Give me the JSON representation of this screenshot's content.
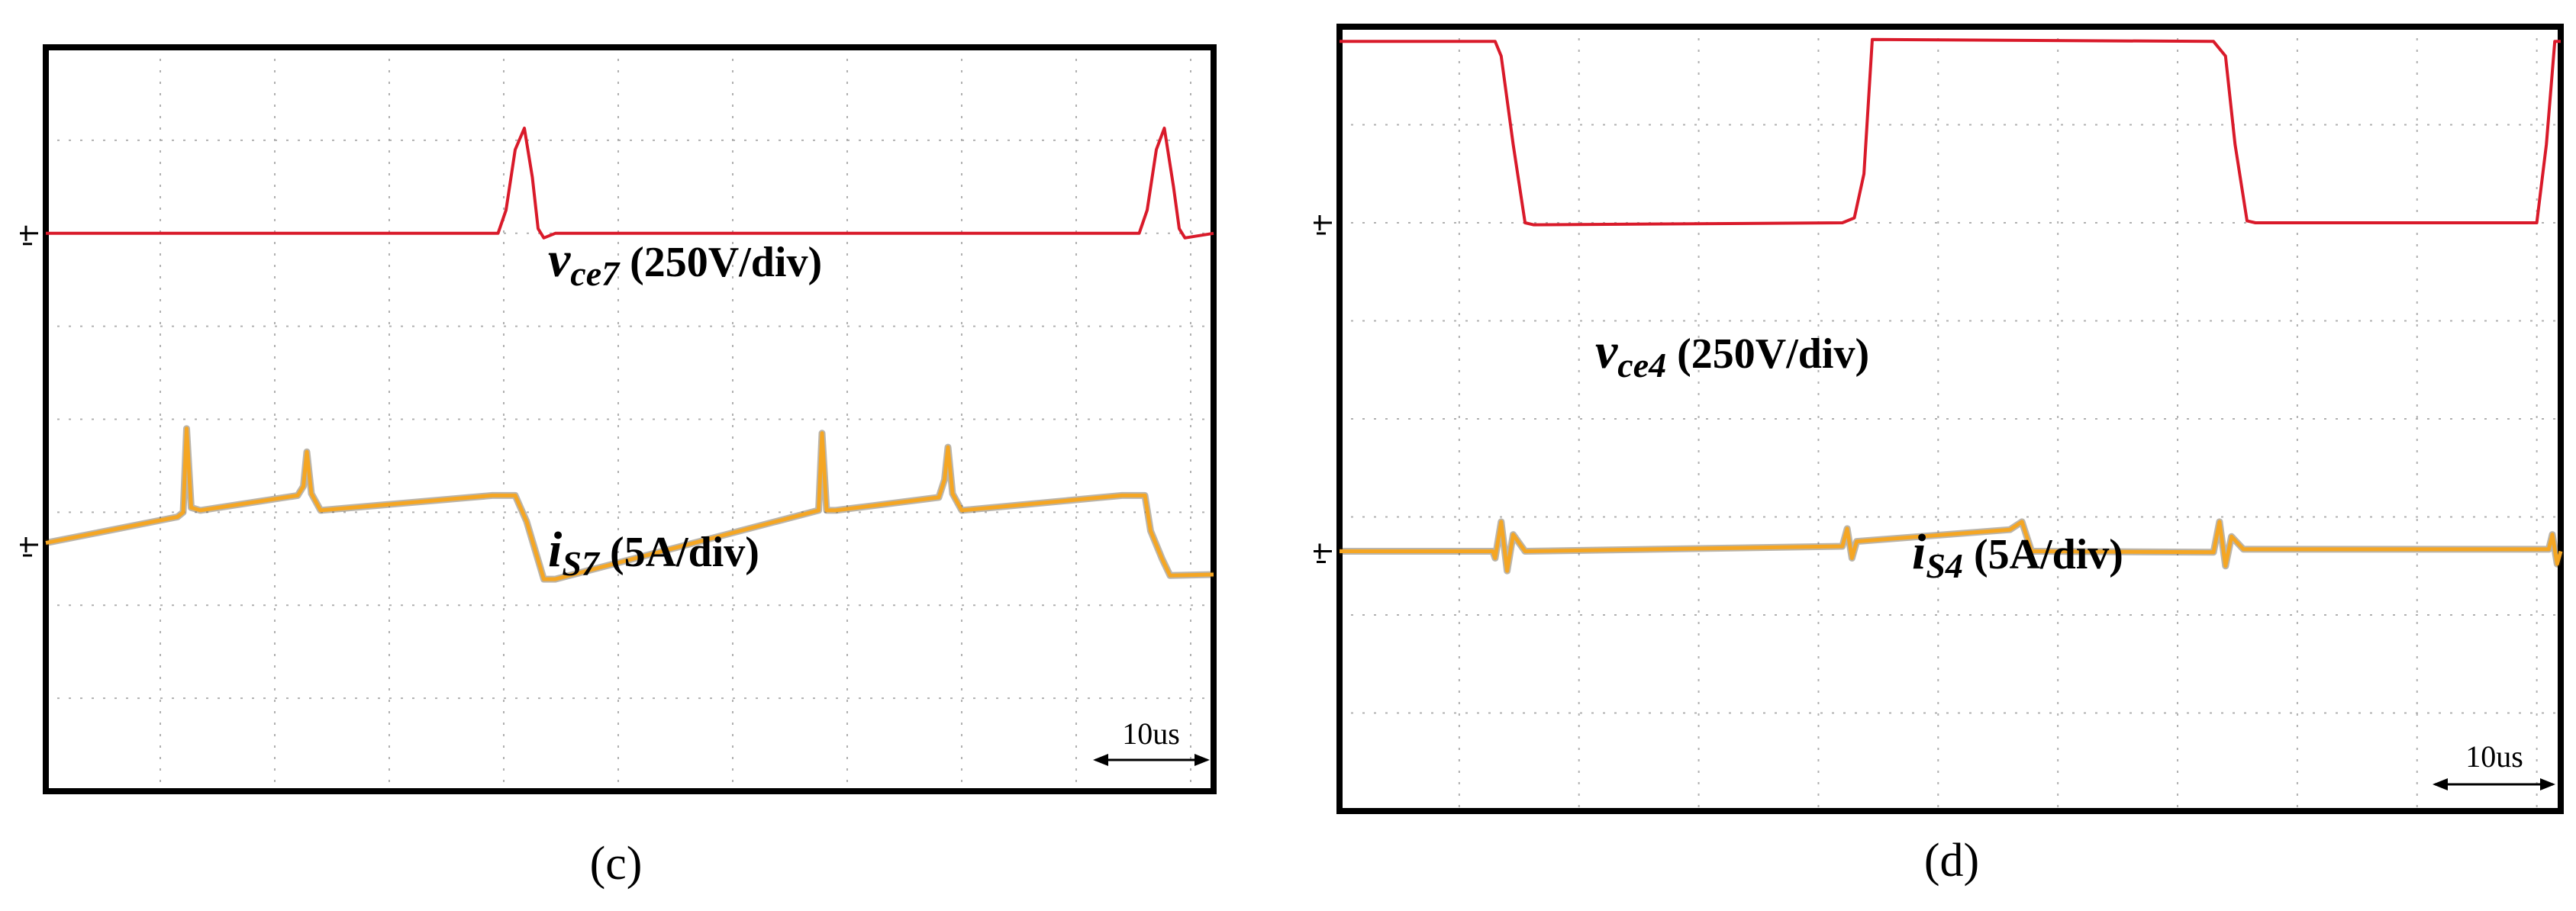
{
  "colors": {
    "voltage": "#d91a2a",
    "current": "#f5a623",
    "current_dark": "#3a2a10",
    "frame": "#000000",
    "grid": "#b0b0b0"
  },
  "chart_data": [
    {
      "type": "line",
      "caption": "(c)",
      "time_unit_per_div": "10us",
      "x": {
        "unit": "div",
        "range": [
          0,
          10.2
        ],
        "grid_divisions": 10
      },
      "y": {
        "unit": "div",
        "range": [
          -4,
          4
        ],
        "grid_divisions": 8
      },
      "scale_bar": {
        "label": "10us",
        "length_div": 1
      },
      "series": [
        {
          "name": "vce7",
          "label_main": "v",
          "label_sub": "ce7",
          "label_scale": "(250V/div)",
          "unit_per_div": "250V/div",
          "ground_level_div": 2.0,
          "points": [
            [
              0,
              2.0
            ],
            [
              3.95,
              2.0
            ],
            [
              4.02,
              2.25
            ],
            [
              4.1,
              2.9
            ],
            [
              4.18,
              3.13
            ],
            [
              4.25,
              2.6
            ],
            [
              4.3,
              2.05
            ],
            [
              4.35,
              1.95
            ],
            [
              4.45,
              2.0
            ],
            [
              9.55,
              2.0
            ],
            [
              9.62,
              2.25
            ],
            [
              9.7,
              2.9
            ],
            [
              9.77,
              3.13
            ],
            [
              9.85,
              2.5
            ],
            [
              9.9,
              2.05
            ],
            [
              9.95,
              1.95
            ],
            [
              10.2,
              2.0
            ]
          ]
        },
        {
          "name": "iS7",
          "label_main": "i",
          "label_sub": "S7",
          "label_scale": "(5A/div)",
          "unit_per_div": "5A/div",
          "ground_level_div": -1.35,
          "points": [
            [
              0,
              -1.33
            ],
            [
              1.15,
              -1.05
            ],
            [
              1.2,
              -1.0
            ],
            [
              1.23,
              -0.1
            ],
            [
              1.27,
              -0.95
            ],
            [
              1.35,
              -0.98
            ],
            [
              2.2,
              -0.82
            ],
            [
              2.25,
              -0.72
            ],
            [
              2.28,
              -0.35
            ],
            [
              2.32,
              -0.8
            ],
            [
              2.4,
              -0.98
            ],
            [
              3.9,
              -0.82
            ],
            [
              4.1,
              -0.82
            ],
            [
              4.2,
              -1.1
            ],
            [
              4.35,
              -1.72
            ],
            [
              4.45,
              -1.72
            ],
            [
              6.75,
              -0.98
            ],
            [
              6.78,
              -0.15
            ],
            [
              6.82,
              -0.98
            ],
            [
              6.9,
              -0.98
            ],
            [
              7.8,
              -0.84
            ],
            [
              7.85,
              -0.65
            ],
            [
              7.88,
              -0.3
            ],
            [
              7.92,
              -0.8
            ],
            [
              8.0,
              -0.98
            ],
            [
              9.4,
              -0.82
            ],
            [
              9.6,
              -0.82
            ],
            [
              9.65,
              -1.2
            ],
            [
              9.75,
              -1.5
            ],
            [
              9.82,
              -1.68
            ],
            [
              10.2,
              -1.67
            ]
          ]
        }
      ]
    },
    {
      "type": "line",
      "caption": "(d)",
      "time_unit_per_div": "10us",
      "x": {
        "unit": "div",
        "range": [
          0,
          10.2
        ],
        "grid_divisions": 10
      },
      "y": {
        "unit": "div",
        "range": [
          -4,
          4
        ],
        "grid_divisions": 8
      },
      "scale_bar": {
        "label": "10us",
        "length_div": 1
      },
      "series": [
        {
          "name": "vce4",
          "label_main": "v",
          "label_sub": "ce4",
          "label_scale": "(250V/div)",
          "unit_per_div": "250V/div",
          "ground_level_div": 2.0,
          "points": [
            [
              0,
              3.85
            ],
            [
              1.3,
              3.85
            ],
            [
              1.35,
              3.7
            ],
            [
              1.45,
              2.8
            ],
            [
              1.55,
              2.0
            ],
            [
              1.62,
              1.98
            ],
            [
              4.2,
              2.0
            ],
            [
              4.3,
              2.05
            ],
            [
              4.38,
              2.5
            ],
            [
              4.45,
              3.87
            ],
            [
              7.3,
              3.85
            ],
            [
              7.4,
              3.7
            ],
            [
              7.48,
              2.8
            ],
            [
              7.58,
              2.02
            ],
            [
              7.65,
              2.0
            ],
            [
              10.0,
              2.0
            ],
            [
              10.08,
              2.8
            ],
            [
              10.15,
              3.85
            ],
            [
              10.2,
              3.85
            ]
          ]
        },
        {
          "name": "iS4",
          "label_main": "i",
          "label_sub": "S4",
          "label_scale": "(5A/div)",
          "unit_per_div": "5A/div",
          "ground_level_div": -1.35,
          "points": [
            [
              0,
              -1.35
            ],
            [
              1.28,
              -1.35
            ],
            [
              1.3,
              -1.42
            ],
            [
              1.35,
              -1.05
            ],
            [
              1.4,
              -1.55
            ],
            [
              1.45,
              -1.18
            ],
            [
              1.55,
              -1.35
            ],
            [
              4.2,
              -1.3
            ],
            [
              4.24,
              -1.12
            ],
            [
              4.28,
              -1.42
            ],
            [
              4.32,
              -1.25
            ],
            [
              5.6,
              -1.13
            ],
            [
              5.7,
              -1.05
            ],
            [
              5.78,
              -1.35
            ],
            [
              7.3,
              -1.36
            ],
            [
              7.35,
              -1.05
            ],
            [
              7.4,
              -1.5
            ],
            [
              7.45,
              -1.2
            ],
            [
              7.55,
              -1.33
            ],
            [
              10.1,
              -1.33
            ],
            [
              10.13,
              -1.18
            ],
            [
              10.17,
              -1.48
            ],
            [
              10.2,
              -1.35
            ]
          ]
        }
      ]
    }
  ]
}
